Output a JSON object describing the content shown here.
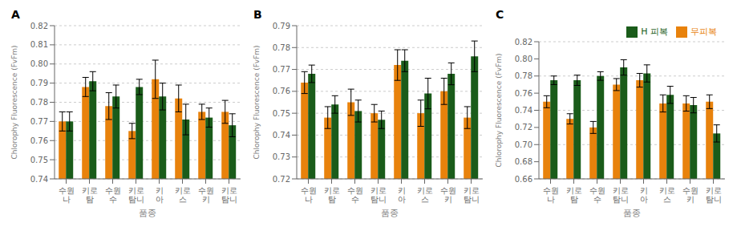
{
  "chart_data": [
    {
      "type": "bar",
      "title": "A",
      "categories": [
        "수원\n나",
        "키로\n탐",
        "수원\n수",
        "키로\n탐니",
        "키\n아",
        "키로\n스",
        "수원\n키",
        "키로\n탐니"
      ],
      "x_label": "품종",
      "y_label": "Chlorophy Fluorescence (FvFm)",
      "series": [
        {
          "color": "#E8820C",
          "values": [
            0.77,
            0.788,
            0.778,
            0.765,
            0.792,
            0.782,
            0.775,
            0.775
          ],
          "errors": [
            0.005,
            0.005,
            0.007,
            0.004,
            0.01,
            0.007,
            0.004,
            0.006
          ]
        },
        {
          "color": "#1A5C1A",
          "values": [
            0.77,
            0.791,
            0.783,
            0.788,
            0.783,
            0.771,
            0.772,
            0.768
          ],
          "errors": [
            0.005,
            0.005,
            0.006,
            0.004,
            0.007,
            0.008,
            0.005,
            0.006
          ]
        }
      ],
      "ylim": [
        0.74,
        0.82
      ],
      "yticks": [
        0.74,
        0.75,
        0.76,
        0.77,
        0.78,
        0.79,
        {
          "value": 0.8,
          "label": "0.80"
        },
        0.81,
        0.82
      ],
      "grid": true
    },
    {
      "type": "bar",
      "title": "B",
      "categories": [
        "수원\n나",
        "키로\n탐",
        "수원\n수",
        "키로\n탐니",
        "키\n아",
        "키로\n스",
        "수원\n키",
        "키로\n탐니"
      ],
      "x_label": "품종",
      "y_label": "Chlorophy Fluorescence (FvFm)",
      "series": [
        {
          "color": "#E8820C",
          "values": [
            0.764,
            0.748,
            0.755,
            0.75,
            0.772,
            0.75,
            0.76,
            0.748
          ],
          "errors": [
            0.005,
            0.005,
            0.006,
            0.004,
            0.007,
            0.006,
            0.006,
            0.005
          ]
        },
        {
          "color": "#1A5C1A",
          "values": [
            0.768,
            0.754,
            0.751,
            0.747,
            0.774,
            0.759,
            0.768,
            0.776
          ],
          "errors": [
            0.004,
            0.004,
            0.005,
            0.004,
            0.005,
            0.007,
            0.005,
            0.007
          ]
        }
      ],
      "ylim": [
        0.72,
        0.79
      ],
      "yticks": [
        0.72,
        0.73,
        0.74,
        0.75,
        0.76,
        0.77,
        0.78,
        0.79
      ],
      "grid": true
    },
    {
      "type": "bar",
      "title": "C",
      "categories": [
        "수원\n나",
        "키로\n탐",
        "수원\n수",
        "키로\n탐니",
        "키\n아",
        "키로\n스",
        "수원\n키",
        "키로\n탐니"
      ],
      "x_label": "품종",
      "y_label": "Chlorophy Fluorescence (FvFm)",
      "series": [
        {
          "name": "무피복",
          "color": "#E8820C",
          "values": [
            0.75,
            0.73,
            0.72,
            0.77,
            0.775,
            0.748,
            0.748,
            0.75
          ],
          "errors": [
            0.007,
            0.006,
            0.007,
            0.007,
            0.008,
            0.01,
            0.009,
            0.008
          ]
        },
        {
          "name": "H 피복",
          "color": "#1A5C1A",
          "values": [
            0.775,
            0.775,
            0.78,
            0.79,
            0.783,
            0.758,
            0.746,
            0.713
          ],
          "errors": [
            0.005,
            0.006,
            0.005,
            0.009,
            0.01,
            0.01,
            0.009,
            0.01
          ]
        }
      ],
      "ylim": [
        0.66,
        0.82
      ],
      "yticks": [
        0.66,
        0.68,
        {
          "value": 0.7,
          "label": "0.70"
        },
        0.72,
        0.74,
        0.76,
        0.78,
        {
          "value": 0.8,
          "label": "0.80"
        },
        0.82
      ],
      "grid": true,
      "legend": "upper right"
    }
  ]
}
